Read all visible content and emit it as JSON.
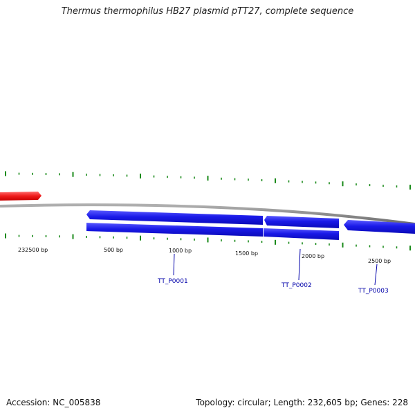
{
  "title": "Thermus thermophilus HB27 plasmid pTT27, complete sequence",
  "accession_text": "Accession: NC_005838",
  "summary_text": "Topology: circular; Length: 232,605 bp; Genes: 228",
  "colors": {
    "backbone": "#8a8a8a",
    "forward_feature": "#e81e1e",
    "gene_feature": "#1414e6",
    "tick": "#1a8a1a",
    "gene_label": "#0000aa"
  },
  "scale_labels": [
    "232500 bp",
    "500 bp",
    "1000 bp",
    "1500 bp",
    "2000 bp",
    "2500 bp"
  ],
  "gene_labels": [
    "TT_P0001",
    "TT_P0002",
    "TT_P0003"
  ]
}
